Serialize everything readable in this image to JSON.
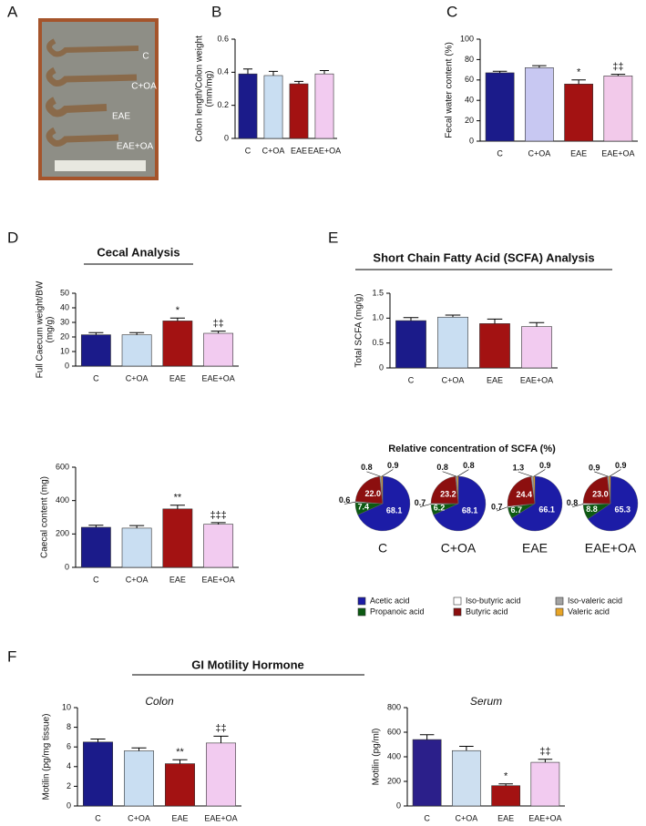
{
  "panel_labels": [
    "A",
    "B",
    "C",
    "D",
    "E",
    "F"
  ],
  "photo": {
    "labels": [
      "C",
      "C+OA",
      "EAE",
      "EAE+OA"
    ]
  },
  "headings": [
    "Cecal Analysis",
    "Short Chain Fatty Acid (SCFA) Analysis",
    "GI Motility Hormone"
  ],
  "chart_data": [
    {
      "type": "bar",
      "ylabel": [
        "Colon length/Colon weight",
        "(mm/mg)"
      ],
      "categories": [
        "C",
        "C+OA",
        "EAE",
        "EAE+OA"
      ],
      "values": [
        0.39,
        0.38,
        0.33,
        0.39
      ],
      "errors": [
        0.03,
        0.025,
        0.015,
        0.02
      ],
      "colors": [
        "#1b1b8a",
        "#c9def2",
        "#a31212",
        "#f2cbf0"
      ],
      "ylim": [
        0,
        0.6
      ],
      "yticks": [
        0,
        0.2,
        0.4,
        0.6
      ]
    },
    {
      "type": "bar",
      "ylabel": [
        "Fecal water content (%)"
      ],
      "categories": [
        "C",
        "C+OA",
        "EAE",
        "EAE+OA"
      ],
      "values": [
        67,
        72,
        56,
        64
      ],
      "errors": [
        1.5,
        2,
        4,
        1.5
      ],
      "colors": [
        "#1b1b8a",
        "#c8c8f2",
        "#a31212",
        "#f2c9ea"
      ],
      "annotations": [
        null,
        null,
        "*",
        "‡‡"
      ],
      "ylim": [
        0,
        100
      ],
      "yticks": [
        0,
        20,
        40,
        60,
        80,
        100
      ]
    },
    {
      "type": "bar",
      "ylabel": [
        "Full Caecum weight/BW",
        "(mg/g)"
      ],
      "categories": [
        "C",
        "C+OA",
        "EAE",
        "EAE+OA"
      ],
      "values": [
        21.5,
        21.5,
        31,
        22.5
      ],
      "errors": [
        1.5,
        1.5,
        2,
        1.5
      ],
      "colors": [
        "#1b1b8a",
        "#c9def2",
        "#a31212",
        "#f2cbf0"
      ],
      "annotations": [
        null,
        null,
        "*",
        "‡‡"
      ],
      "ylim": [
        0,
        50
      ],
      "yticks": [
        0,
        10,
        20,
        30,
        40,
        50
      ]
    },
    {
      "type": "bar",
      "ylabel": [
        "Caecal content (mg)"
      ],
      "categories": [
        "C",
        "C+OA",
        "EAE",
        "EAE+OA"
      ],
      "values": [
        240,
        235,
        350,
        258
      ],
      "errors": [
        12,
        15,
        22,
        10
      ],
      "colors": [
        "#1b1b8a",
        "#c9def2",
        "#a31212",
        "#f2cbf0"
      ],
      "annotations": [
        null,
        null,
        "**",
        "‡‡‡"
      ],
      "ylim": [
        0,
        600
      ],
      "yticks": [
        0,
        200,
        400,
        600
      ]
    },
    {
      "type": "bar",
      "ylabel": [
        "Total SCFA (mg/g)"
      ],
      "categories": [
        "C",
        "C+OA",
        "EAE",
        "EAE+OA"
      ],
      "values": [
        0.95,
        1.02,
        0.89,
        0.83
      ],
      "errors": [
        0.06,
        0.04,
        0.09,
        0.08
      ],
      "colors": [
        "#1b1b8a",
        "#c9def2",
        "#a31212",
        "#f2cbf0"
      ],
      "ylim": [
        0,
        1.5
      ],
      "yticks": [
        0,
        0.5,
        {
          "value": 1,
          "label": "1.0"
        },
        1.5
      ]
    },
    {
      "type": "pie",
      "title": "Relative concentration of SCFA (%)",
      "categories": [
        "Acetic acid",
        "Propanoic acid",
        "Iso-butyric acid",
        "Butyric acid",
        "Iso-valeric acid",
        "Valeric acid"
      ],
      "colors": [
        "#1c1ca6",
        "#0c5a12",
        "#ffffff",
        "#8c0f0f",
        "#a3a3a3",
        "#e8a526"
      ],
      "series": [
        {
          "name": "C",
          "values": [
            68.1,
            7.4,
            0.6,
            22.0,
            0.8,
            0.9
          ],
          "value_labels": [
            "68.1",
            "7.4",
            "0.6",
            "22.0",
            "0.8",
            "0.9"
          ]
        },
        {
          "name": "C+OA",
          "values": [
            68.1,
            6.2,
            0.7,
            23.2,
            0.8,
            0.8
          ],
          "value_labels": [
            "68.1",
            "6.2",
            "0.7",
            "23.2",
            "0.8",
            "0.8"
          ]
        },
        {
          "name": "EAE",
          "values": [
            66.1,
            6.7,
            0.7,
            24.4,
            1.3,
            0.9
          ],
          "value_labels": [
            "66.1",
            "6.7",
            "0.7",
            "24.4",
            "1.3",
            "0.9"
          ]
        },
        {
          "name": "EAE+OA",
          "values": [
            65.3,
            8.8,
            0.8,
            23.0,
            0.9,
            0.9
          ],
          "value_labels": [
            "65.3",
            "8.8",
            "0.8",
            "23.0",
            "0.9",
            "0.9"
          ]
        }
      ]
    },
    {
      "type": "bar",
      "title": "Colon",
      "ylabel": [
        "Motilin (pg/mg tissue)"
      ],
      "categories": [
        "C",
        "C+OA",
        "EAE",
        "EAE+OA"
      ],
      "values": [
        6.5,
        5.6,
        4.3,
        6.4
      ],
      "errors": [
        0.3,
        0.3,
        0.4,
        0.7
      ],
      "colors": [
        "#1b1b8a",
        "#c9def2",
        "#a31212",
        "#f2cbf0"
      ],
      "annotations": [
        null,
        null,
        "**",
        "‡‡"
      ],
      "ylim": [
        0,
        10
      ],
      "yticks": [
        0,
        2,
        4,
        6,
        8,
        10
      ]
    },
    {
      "type": "bar",
      "title": "Serum",
      "ylabel": [
        "Motilin (pg/ml)"
      ],
      "categories": [
        "C",
        "C+OA",
        "EAE",
        "EAE+OA"
      ],
      "values": [
        540,
        450,
        165,
        355
      ],
      "errors": [
        40,
        35,
        15,
        25
      ],
      "colors": [
        "#2b1f8a",
        "#cddff0",
        "#a31212",
        "#f2cbf0"
      ],
      "annotations": [
        null,
        null,
        "*",
        "‡‡"
      ],
      "ylim": [
        0,
        800
      ],
      "yticks": [
        0,
        200,
        400,
        600,
        800
      ]
    }
  ]
}
